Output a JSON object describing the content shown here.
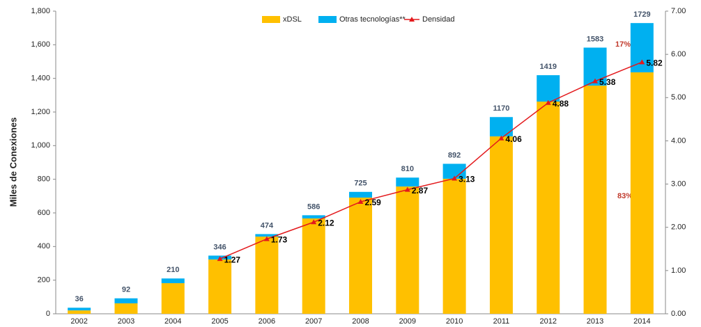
{
  "chart_data": {
    "type": "stacked_bar_line",
    "y_label": "Miles de Conexiones",
    "categories": [
      "2002",
      "2003",
      "2004",
      "2005",
      "2006",
      "2007",
      "2008",
      "2009",
      "2010",
      "2011",
      "2012",
      "2013",
      "2014"
    ],
    "series": [
      {
        "name": "xDSL",
        "color": "#ffc000",
        "values": [
          20,
          62,
          182,
          323,
          459,
          567,
          691,
          757,
          803,
          1055,
          1262,
          1357,
          1436
        ]
      },
      {
        "name": "Otras tecnologías**",
        "color": "#00b0f0",
        "values": [
          16,
          30,
          28,
          23,
          15,
          19,
          34,
          53,
          89,
          115,
          157,
          226,
          293
        ]
      },
      {
        "name": "Densidad",
        "color": "#e3191c",
        "axis": "y2",
        "values": [
          null,
          null,
          null,
          1.27,
          1.73,
          2.12,
          2.59,
          2.87,
          3.13,
          4.06,
          4.88,
          5.38,
          5.82
        ]
      }
    ],
    "totals": [
      36,
      92,
      210,
      346,
      474,
      586,
      725,
      810,
      892,
      1170,
      1419,
      1583,
      1729
    ],
    "annotations": [
      "17%",
      "83%"
    ],
    "ylim": [
      0,
      1800
    ],
    "yticks": [
      0,
      200,
      400,
      600,
      800,
      {
        "value": 1000,
        "label": "1,000"
      },
      {
        "value": 1200,
        "label": "1,200"
      },
      {
        "value": 1400,
        "label": "1,400"
      },
      {
        "value": 1600,
        "label": "1,600"
      },
      {
        "value": 1800,
        "label": "1,800"
      }
    ],
    "y2lim": [
      0,
      7
    ],
    "y2ticks": [
      {
        "value": 0,
        "label": "0.00"
      },
      {
        "value": 1,
        "label": "1.00"
      },
      {
        "value": 2,
        "label": "2.00"
      },
      {
        "value": 3,
        "label": "3.00"
      },
      {
        "value": 4,
        "label": "4.00"
      },
      {
        "value": 5,
        "label": "5.00"
      },
      {
        "value": 6,
        "label": "6.00"
      },
      {
        "value": 7,
        "label": "7.00"
      }
    ],
    "legend": "top"
  }
}
